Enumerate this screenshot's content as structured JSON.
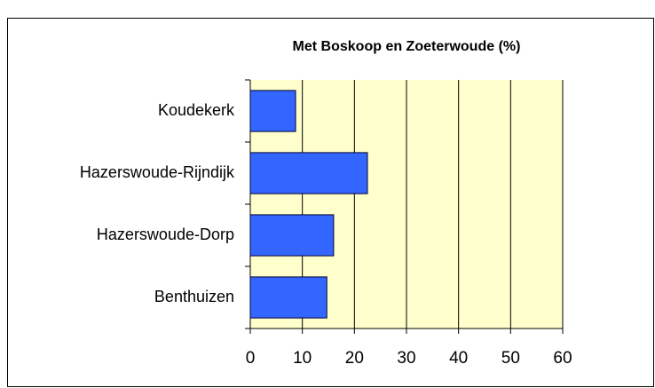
{
  "chart_data": {
    "type": "bar",
    "orientation": "horizontal",
    "title": "Met Boskoop en Zoeterwoude (%)",
    "categories": [
      "Koudekerk",
      "Hazerswoude-Rijndijk",
      "Hazerswoude-Dorp",
      "Benthuizen"
    ],
    "values": [
      8.7,
      22.5,
      16,
      14.7
    ],
    "color": "#3366ff",
    "xlim": [
      0,
      60
    ],
    "xticks": [
      0,
      10,
      20,
      30,
      40,
      50,
      60
    ],
    "grid": true
  }
}
